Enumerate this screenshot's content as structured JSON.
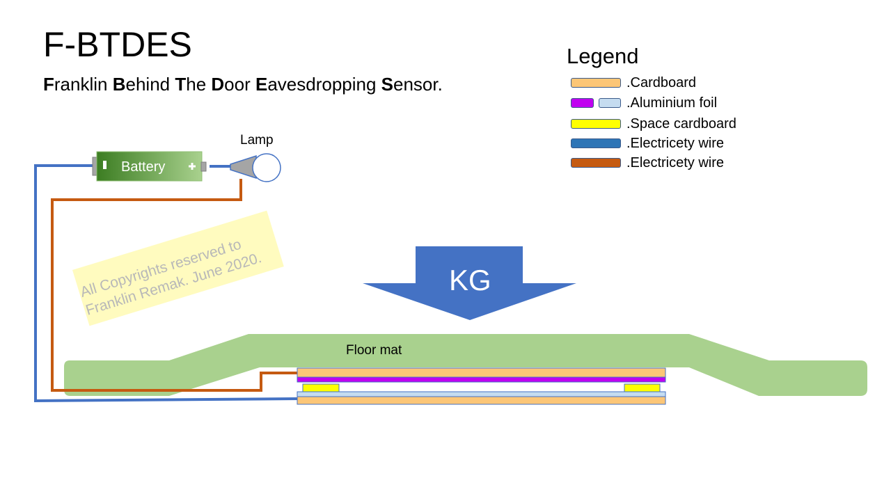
{
  "header": {
    "title": "F-BTDES",
    "subtitle_parts": [
      {
        "bold": "F",
        "rest": "ranklin "
      },
      {
        "bold": "B",
        "rest": "ehind "
      },
      {
        "bold": "T",
        "rest": "he "
      },
      {
        "bold": "D",
        "rest": "oor "
      },
      {
        "bold": "E",
        "rest": "avesdropping "
      },
      {
        "bold": "S",
        "rest": "ensor."
      }
    ]
  },
  "legend": {
    "title": "Legend",
    "items": [
      {
        "label": ".Cardboard",
        "colors": [
          "#fcc677"
        ]
      },
      {
        "label": ".Aluminium foil",
        "colors": [
          "#c000f0",
          "#c5dcf0"
        ]
      },
      {
        "label": ".Space cardboard",
        "colors": [
          "#ffff00"
        ]
      },
      {
        "label": ".Electricety wire",
        "colors": [
          "#2e75b6"
        ]
      },
      {
        "label": ".Electricety wire",
        "colors": [
          "#c55a11"
        ]
      }
    ]
  },
  "diagram": {
    "battery_label": "Battery",
    "lamp_label": "Lamp",
    "weight_label": "KG",
    "floor_mat_label": "Floor mat",
    "watermark_lines": [
      "All Copyrights reserved to",
      "Franklin Remak. June 2020."
    ],
    "colors": {
      "blue_wire": "#4472c4",
      "orange_wire": "#c55a11",
      "floor_mat": "#a9d18e",
      "arrow": "#4472c4",
      "cardboard": "#fcc677",
      "foil_top": "#c000f0",
      "foil_bottom": "#c5dcf0",
      "spacer": "#ffff00"
    }
  }
}
